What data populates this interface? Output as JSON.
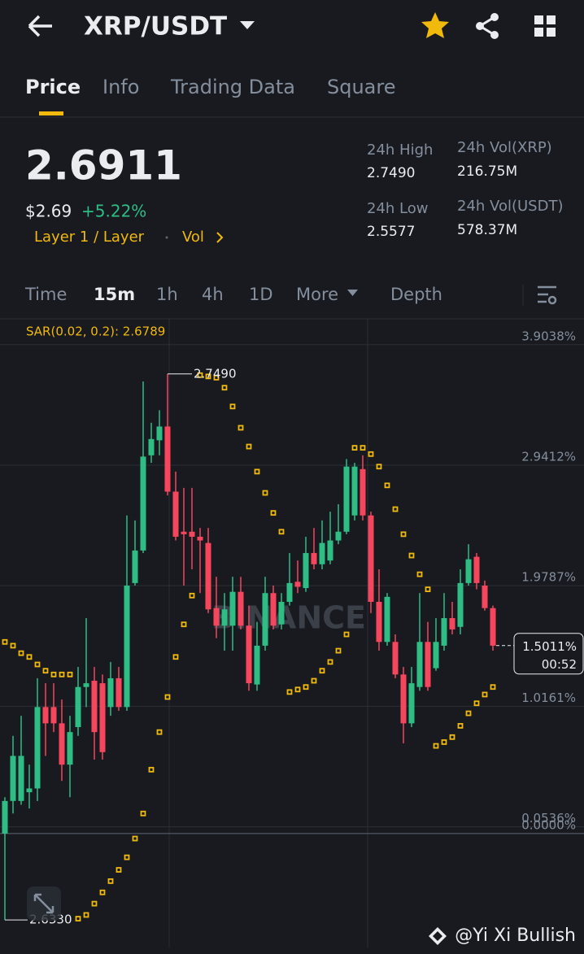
{
  "header": {
    "title": "XRP/USDT"
  },
  "tabs": [
    "Price",
    "Info",
    "Trading Data",
    "Square"
  ],
  "price": {
    "last": "2.6911",
    "usd": "$2.69",
    "change": "+5.22%",
    "tags": [
      "Layer 1 / Layer",
      "Vol"
    ]
  },
  "stats": [
    {
      "label": "24h High",
      "value": "2.7490"
    },
    {
      "label": "24h Vol(XRP)",
      "value": "216.75M"
    },
    {
      "label": "24h Low",
      "value": "2.5577"
    },
    {
      "label": "24h Vol(USDT)",
      "value": "578.37M"
    }
  ],
  "intervals": [
    "Time",
    "15m",
    "1h",
    "4h",
    "1D",
    "More",
    "Depth"
  ],
  "chart_data": {
    "type": "candlestick",
    "indicator": "SAR(0.02, 0.2): 2.6789",
    "watermark": "BINANCE",
    "open": [
      0.0,
      0.26,
      0.26,
      0.33,
      0.36,
      1.01,
      1.01,
      0.88,
      0.55,
      0.85,
      1.17,
      1.22,
      1.2,
      1.01,
      1.24,
      1.01,
      2.0,
      2.26,
      3.02,
      3.14,
      3.25,
      2.73,
      2.41,
      2.41,
      2.37,
      2.32,
      1.8,
      1.66,
      1.66,
      1.93,
      1.66,
      1.19,
      1.5,
      1.92,
      1.67,
      1.85,
      2.01,
      1.96,
      2.24,
      2.15,
      2.18,
      2.34,
      2.41,
      2.54,
      2.91,
      2.54,
      1.85,
      1.53,
      1.53,
      1.27,
      0.88,
      1.17,
      1.53,
      1.32,
      1.5,
      1.72,
      1.65,
      2.0,
      2.21,
      1.98,
      1.8
    ],
    "close": [
      0.26,
      0.62,
      0.62,
      0.36,
      1.01,
      0.88,
      0.88,
      0.55,
      0.81,
      1.17,
      1.2,
      0.81,
      0.65,
      1.24,
      1.01,
      1.98,
      2.26,
      3.01,
      3.15,
      3.25,
      2.73,
      2.37,
      2.39,
      2.37,
      2.34,
      1.79,
      1.66,
      1.79,
      1.93,
      1.66,
      1.2,
      1.5,
      1.92,
      1.66,
      1.85,
      2.0,
      1.97,
      2.24,
      2.15,
      2.32,
      2.34,
      2.41,
      2.93,
      2.93,
      2.54,
      1.85,
      1.53,
      1.89,
      1.27,
      0.88,
      1.2,
      1.53,
      1.17,
      1.53,
      1.72,
      1.63,
      2.0,
      2.19,
      2.0,
      1.8,
      1.5
    ],
    "high": [
      0.29,
      0.78,
      0.94,
      0.55,
      1.24,
      1.2,
      1.2,
      1.07,
      0.94,
      1.33,
      1.72,
      1.33,
      1.27,
      1.37,
      1.33,
      2.54,
      2.5,
      3.61,
      3.28,
      3.38,
      3.67,
      2.89,
      2.76,
      2.76,
      2.44,
      2.44,
      2.05,
      1.92,
      2.05,
      2.05,
      1.82,
      1.69,
      2.05,
      1.98,
      1.92,
      2.24,
      2.18,
      2.37,
      2.44,
      2.5,
      2.57,
      2.63,
      2.99,
      2.96,
      3.02,
      2.57,
      2.11,
      1.92,
      1.59,
      1.33,
      1.33,
      1.92,
      1.69,
      1.72,
      1.92,
      1.85,
      2.11,
      2.31,
      2.24,
      2.02,
      1.82
    ],
    "low": [
      -0.69,
      0.16,
      0.23,
      0.2,
      0.26,
      0.62,
      0.81,
      0.42,
      0.29,
      0.78,
      1.01,
      0.59,
      0.59,
      0.94,
      0.98,
      0.98,
      1.98,
      2.24,
      2.96,
      3.02,
      2.7,
      2.34,
      1.98,
      2.11,
      1.92,
      1.76,
      1.56,
      1.46,
      1.46,
      1.63,
      1.14,
      1.14,
      1.46,
      1.63,
      1.63,
      1.82,
      1.92,
      1.93,
      2.11,
      2.11,
      2.15,
      2.31,
      2.39,
      2.5,
      2.5,
      1.76,
      1.46,
      1.5,
      1.24,
      0.72,
      0.85,
      1.14,
      1.14,
      1.3,
      1.46,
      1.59,
      1.59,
      1.98,
      1.95,
      1.78,
      1.46
    ],
    "sar": [
      1.53,
      1.5,
      1.44,
      1.41,
      1.35,
      1.3,
      1.27,
      1.27,
      1.27,
      -0.68,
      -0.65,
      -0.56,
      -0.47,
      -0.38,
      -0.29,
      -0.19,
      -0.04,
      0.16,
      0.51,
      0.81,
      1.09,
      1.41,
      1.67,
      1.9,
      3.66,
      3.65,
      3.64,
      3.56,
      3.41,
      3.24,
      3.09,
      2.89,
      2.72,
      2.56,
      2.41,
      1.13,
      1.15,
      1.17,
      1.22,
      1.3,
      1.37,
      1.46,
      1.59,
      3.08,
      3.08,
      3.03,
      2.93,
      2.78,
      2.59,
      2.39,
      2.22,
      2.07,
      1.95,
      0.7,
      0.73,
      0.77,
      0.86,
      0.96,
      1.04,
      1.11,
      1.17
    ],
    "ylim": [
      -0.91,
      4.11
    ],
    "yticks": [
      {
        "value": 3.9038,
        "label": "3.9038%"
      },
      {
        "value": 2.9412,
        "label": "2.9412%"
      },
      {
        "value": 1.9787,
        "label": "1.9787%"
      },
      {
        "value": 1.0161,
        "label": "1.0161%"
      },
      {
        "value": 0.0536,
        "label": "0.0536%"
      },
      {
        "value": 0,
        "label": "0.0000%"
      }
    ],
    "high_label": "2.7490",
    "low_label": "2.6330",
    "last": {
      "value": 1.5011,
      "label": "1.5011%"
    },
    "countdown": "00:52",
    "up_color": "#2ebd85",
    "down_color": "#f6465d",
    "sar_color": "#f0b90b"
  },
  "watermark": "@Yi Xi Bullish"
}
